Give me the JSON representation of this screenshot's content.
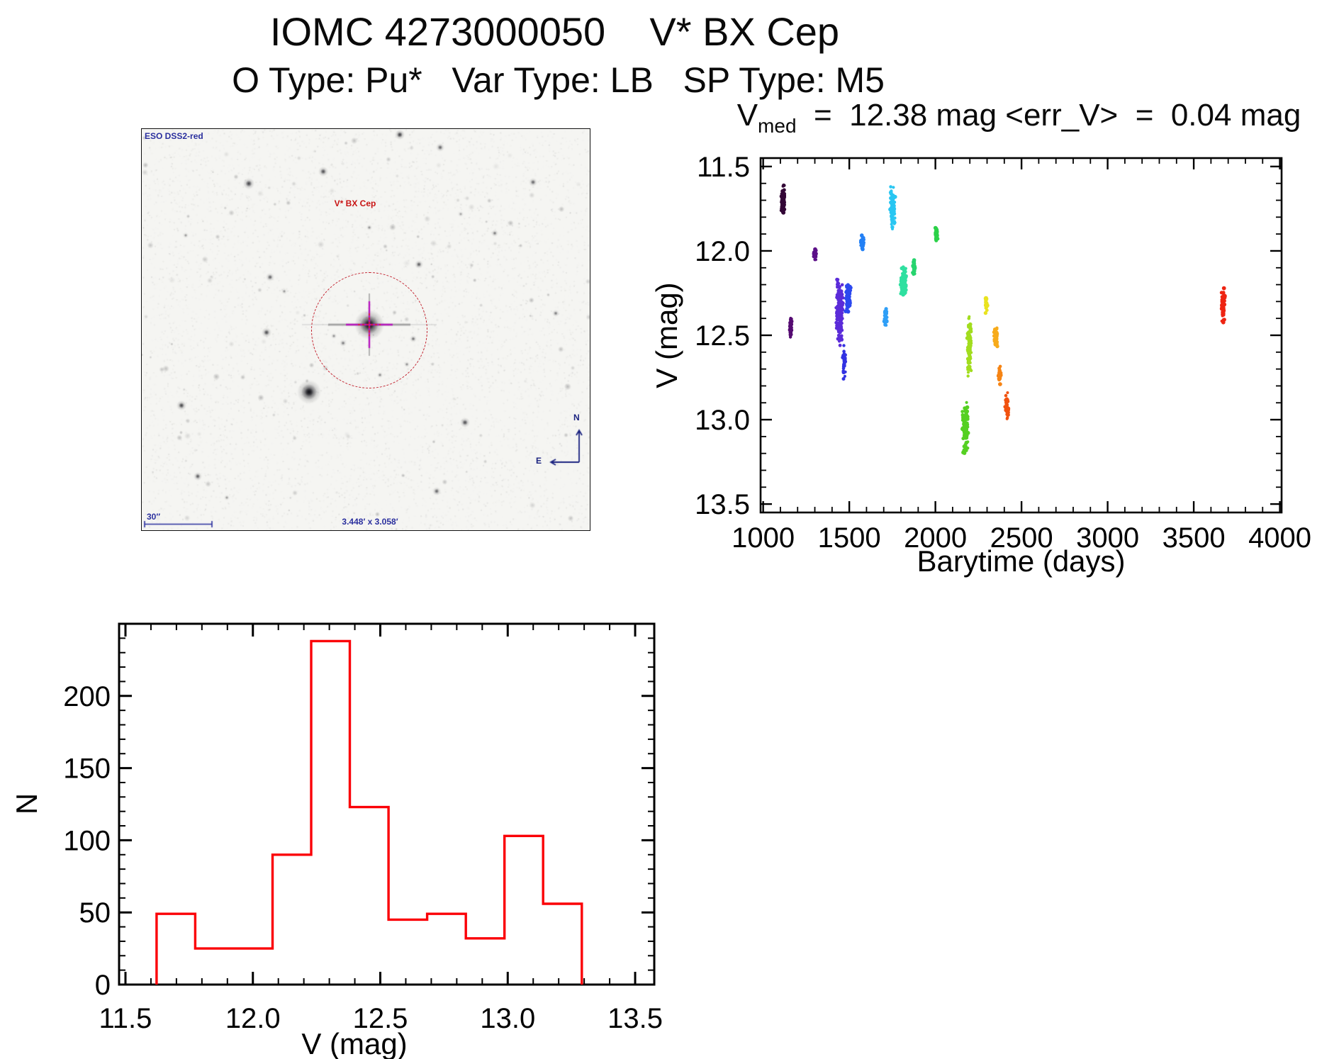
{
  "header": {
    "title": "IOMC 4273000050    V* BX Cep",
    "subtitle": "O Type: Pu*   Var Type: LB   SP Type: M5"
  },
  "finder": {
    "survey_label": "ESO DSS2-red",
    "target_label": "V* BX Cep",
    "scale_label": "30″",
    "fov_label": "3.448′ x 3.058′",
    "compass_north": "N",
    "compass_east": "E",
    "circle_color": "#c2212e",
    "annotation_color": "#2a2f9e",
    "target_label_color": "#c81414"
  },
  "chart_data": [
    {
      "type": "scatter",
      "title": {
        "prefix": "V",
        "subscript": "med",
        "suffix": "  =  12.38 mag <err_V>  =  0.04 mag"
      },
      "xlabel": "Barytime (days)",
      "ylabel": "V (mag)",
      "xlim": [
        985,
        4010
      ],
      "ylim": [
        13.55,
        11.45
      ],
      "y_axis_inverted": true,
      "xticks": [
        1000,
        1500,
        2000,
        2500,
        3000,
        3500,
        4000
      ],
      "yticks": [
        11.5,
        12.0,
        12.5,
        13.0,
        13.5
      ],
      "x_minor_step": 100,
      "y_minor_step": 0.1,
      "grid": false,
      "legend": "none",
      "series_note": "observing epochs colour-coded from early (dark purple) to late (red)",
      "clusters": [
        {
          "t": 1115,
          "v_min": 11.61,
          "v_max": 11.8,
          "n": 85,
          "sx": 1.6,
          "color": "#330636"
        },
        {
          "t": 1160,
          "v_min": 12.39,
          "v_max": 12.53,
          "n": 38,
          "sx": 1.2,
          "color": "#550b72"
        },
        {
          "t": 1300,
          "v_min": 11.97,
          "v_max": 12.06,
          "n": 28,
          "sx": 1.2,
          "color": "#5c1088"
        },
        {
          "t": 1444,
          "v_min": 12.17,
          "v_max": 12.56,
          "n": 170,
          "sx": 3.5,
          "color": "#5b2cd9"
        },
        {
          "t": 1469,
          "v_min": 12.54,
          "v_max": 12.76,
          "n": 26,
          "sx": 1.5,
          "color": "#3232e2"
        },
        {
          "t": 1494,
          "v_min": 12.18,
          "v_max": 12.36,
          "n": 80,
          "sx": 2.4,
          "color": "#2c49ef"
        },
        {
          "t": 1576,
          "v_min": 11.89,
          "v_max": 11.99,
          "n": 36,
          "sx": 1.5,
          "color": "#2380f5"
        },
        {
          "t": 1712,
          "v_min": 12.33,
          "v_max": 12.46,
          "n": 30,
          "sx": 1.5,
          "color": "#2f9ff7"
        },
        {
          "t": 1753,
          "v_min": 11.62,
          "v_max": 11.87,
          "n": 90,
          "sx": 2.4,
          "color": "#29c6f2"
        },
        {
          "t": 1815,
          "v_min": 12.09,
          "v_max": 12.27,
          "n": 100,
          "sx": 3.0,
          "color": "#2fe0a0"
        },
        {
          "t": 1876,
          "v_min": 12.05,
          "v_max": 12.14,
          "n": 30,
          "sx": 1.5,
          "color": "#27d46e"
        },
        {
          "t": 2008,
          "v_min": 11.86,
          "v_max": 11.95,
          "n": 30,
          "sx": 1.5,
          "color": "#2bd148"
        },
        {
          "t": 2173,
          "v_min": 12.88,
          "v_max": 13.22,
          "n": 95,
          "sx": 3.0,
          "color": "#55d022"
        },
        {
          "t": 2197,
          "v_min": 12.39,
          "v_max": 12.75,
          "n": 75,
          "sx": 2.0,
          "color": "#a2dd1e"
        },
        {
          "t": 2296,
          "v_min": 12.25,
          "v_max": 12.38,
          "n": 26,
          "sx": 1.5,
          "color": "#e9e320"
        },
        {
          "t": 2350,
          "v_min": 12.43,
          "v_max": 12.58,
          "n": 40,
          "sx": 1.8,
          "color": "#f7ab1b"
        },
        {
          "t": 2374,
          "v_min": 12.68,
          "v_max": 12.79,
          "n": 24,
          "sx": 1.5,
          "color": "#f68414"
        },
        {
          "t": 2416,
          "v_min": 12.84,
          "v_max": 13.0,
          "n": 36,
          "sx": 1.8,
          "color": "#f1520f"
        },
        {
          "t": 3672,
          "v_min": 12.21,
          "v_max": 12.45,
          "n": 60,
          "sx": 1.8,
          "color": "#ee2412"
        }
      ]
    },
    {
      "type": "histogram",
      "title": "",
      "xlabel": "V (mag)",
      "ylabel": "N",
      "xlim": [
        11.475,
        13.575
      ],
      "ylim": [
        0,
        250
      ],
      "xticks": [
        11.5,
        12.0,
        12.5,
        13.0,
        13.5
      ],
      "yticks": [
        0,
        50,
        100,
        150,
        200
      ],
      "x_minor_step": 0.1,
      "y_minor_step": 10,
      "grid": false,
      "bin_start": 11.622,
      "bin_width": 0.1517,
      "counts": [
        49,
        25,
        25,
        90,
        238,
        123,
        45,
        49,
        32,
        103,
        56
      ],
      "color": "#fb0007"
    }
  ]
}
